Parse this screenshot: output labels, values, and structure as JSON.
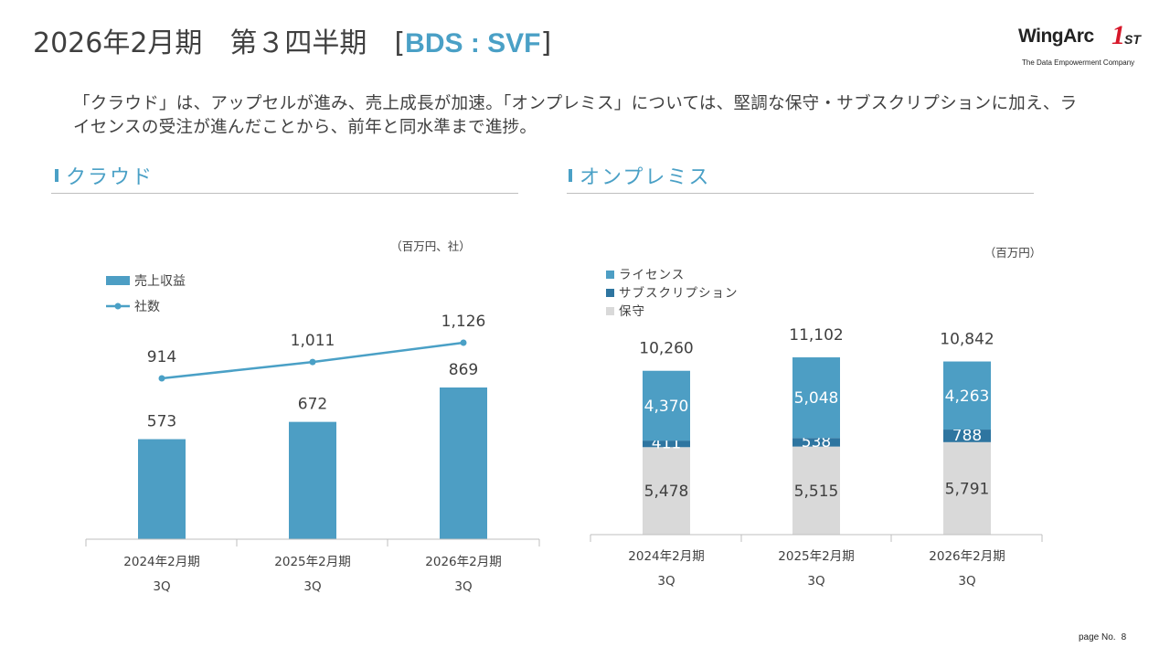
{
  "title": {
    "main": "2026年2月期　第３四半期",
    "bracket_open": "[",
    "segment": "BDS : SVF",
    "bracket_close": "]"
  },
  "logo": {
    "wordmark": "WingArc",
    "one": "1",
    "st": "ST",
    "tagline": "The Data Empowerment Company"
  },
  "summary": "「クラウド」は、アップセルが進み、売上成長が加速。「オンプレミス」については、堅調な保守・サブスクリプションに加え、ライセンスの受注が進んだことから、前年と同水準まで進捗。",
  "sections": {
    "cloud": "クラウド",
    "onprem": "オンプレミス"
  },
  "footer": {
    "label": "page No.",
    "number": "8"
  },
  "colors": {
    "accent": "#4aa0c6",
    "bar": "#4d9ec4",
    "subscription": "#2e75a0",
    "maintenance": "#d9d9d9",
    "axis": "#bfbfbf",
    "text": "#404040"
  },
  "chart_data": [
    {
      "type": "bar",
      "title": "クラウド",
      "unit": "（百万円、社）",
      "categories": [
        [
          "2024年2月期",
          "3Q"
        ],
        [
          "2025年2月期",
          "3Q"
        ],
        [
          "2026年2月期",
          "3Q"
        ]
      ],
      "series": [
        {
          "name": "売上収益",
          "type": "bar",
          "values": [
            573,
            672,
            869
          ],
          "labels": [
            "573",
            "672",
            "869"
          ]
        },
        {
          "name": "社数",
          "type": "line",
          "values": [
            914,
            1011,
            1126
          ],
          "labels": [
            "914",
            "1,011",
            "1,126"
          ]
        }
      ],
      "ylim_bar": [
        0,
        1000
      ],
      "ylim_line": [
        0,
        1350
      ],
      "legend": "top-left",
      "grid": false
    },
    {
      "type": "bar",
      "stacked": true,
      "title": "オンプレミス",
      "unit": "（百万円）",
      "categories": [
        [
          "2024年2月期",
          "3Q"
        ],
        [
          "2025年2月期",
          "3Q"
        ],
        [
          "2026年2月期",
          "3Q"
        ]
      ],
      "series": [
        {
          "name": "保守",
          "values": [
            5478,
            5515,
            5791
          ],
          "labels": [
            "5,478",
            "5,515",
            "5,791"
          ]
        },
        {
          "name": "サブスクリプション",
          "values": [
            411,
            538,
            788
          ],
          "labels": [
            "411",
            "538",
            "788"
          ]
        },
        {
          "name": "ライセンス",
          "values": [
            4370,
            5048,
            4263
          ],
          "labels": [
            "4,370",
            "5,048",
            "4,263"
          ]
        }
      ],
      "legend_order": [
        "ライセンス",
        "サブスクリプション",
        "保守"
      ],
      "totals": [
        "10,260",
        "11,102",
        "10,842"
      ],
      "ylim": [
        0,
        14200
      ],
      "legend": "top-left",
      "grid": false
    }
  ]
}
